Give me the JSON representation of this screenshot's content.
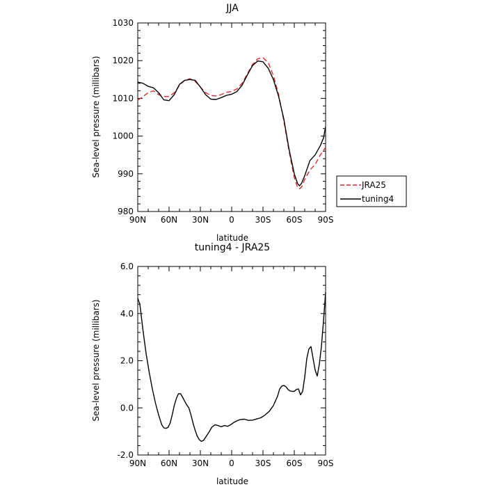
{
  "chart_data": [
    {
      "type": "line",
      "title": "JJA",
      "xlabel": "latitude",
      "ylabel": "Sea-level pressure (millibars)",
      "xlim": [
        90,
        -90
      ],
      "ylim": [
        980,
        1030
      ],
      "x_tick_labels": [
        "90N",
        "60N",
        "30N",
        "0",
        "30S",
        "60S",
        "90S"
      ],
      "y_tick_labels": [
        "980",
        "990",
        "1000",
        "1010",
        "1020",
        "1030"
      ],
      "legend": "right",
      "series": [
        {
          "name": "JRA25",
          "color": "#e8242a",
          "dash": "dashed",
          "x": [
            90,
            85,
            80,
            75,
            70,
            65,
            60,
            55,
            50,
            45,
            40,
            35,
            30,
            25,
            20,
            15,
            10,
            5,
            0,
            -5,
            -10,
            -15,
            -20,
            -25,
            -30,
            -35,
            -40,
            -45,
            -50,
            -55,
            -60,
            -63,
            -65,
            -67,
            -70,
            -75,
            -80,
            -85,
            -90
          ],
          "y": [
            1009.5,
            1010.5,
            1011.5,
            1012.0,
            1011.0,
            1010.5,
            1010.5,
            1011.5,
            1013.5,
            1014.8,
            1015.2,
            1014.5,
            1013.0,
            1011.5,
            1010.8,
            1010.6,
            1011.0,
            1011.6,
            1011.8,
            1012.5,
            1014.0,
            1016.5,
            1019.0,
            1020.5,
            1020.8,
            1019.5,
            1016.0,
            1011.0,
            1004.0,
            996.0,
            989.0,
            986.5,
            986.0,
            986.5,
            988.5,
            991.0,
            992.5,
            995.0,
            997.0
          ]
        },
        {
          "name": "tuning4",
          "color": "#000000",
          "dash": "solid",
          "x": [
            90,
            85,
            80,
            75,
            70,
            65,
            60,
            55,
            50,
            45,
            40,
            35,
            30,
            25,
            20,
            15,
            10,
            5,
            0,
            -5,
            -10,
            -15,
            -20,
            -25,
            -30,
            -35,
            -40,
            -45,
            -50,
            -55,
            -60,
            -63,
            -65,
            -67,
            -70,
            -75,
            -80,
            -85,
            -88,
            -90
          ],
          "y": [
            1014.3,
            1014.0,
            1013.2,
            1012.8,
            1011.5,
            1009.6,
            1009.4,
            1011.0,
            1013.7,
            1014.8,
            1015.0,
            1014.8,
            1013.0,
            1011.0,
            1009.8,
            1009.7,
            1010.2,
            1010.8,
            1011.1,
            1011.8,
            1013.5,
            1016.2,
            1018.7,
            1019.9,
            1019.7,
            1018.0,
            1015.0,
            1010.5,
            1004.5,
            996.5,
            990.0,
            987.5,
            986.8,
            987.5,
            989.5,
            993.5,
            995.0,
            997.5,
            999.5,
            1002.5
          ]
        }
      ]
    },
    {
      "type": "line",
      "title": "tuning4 - JRA25",
      "xlabel": "latitude",
      "ylabel": "Sea-level pressure (millibars)",
      "xlim": [
        90,
        -90
      ],
      "ylim": [
        -2.0,
        6.0
      ],
      "x_tick_labels": [
        "90N",
        "60N",
        "30N",
        "0",
        "30S",
        "60S",
        "90S"
      ],
      "y_tick_labels": [
        "-2.0",
        "0.0",
        "2.0",
        "4.0",
        "6.0"
      ],
      "series": [
        {
          "name": "",
          "color": "#000000",
          "dash": "solid",
          "x": [
            90,
            88,
            85,
            82,
            79,
            76,
            73,
            70,
            67,
            65,
            63,
            61,
            59,
            57,
            55,
            53,
            51,
            49,
            47,
            45,
            43,
            41,
            39,
            37,
            35,
            33,
            31,
            29,
            27,
            25,
            22,
            19,
            16,
            13,
            10,
            7,
            4,
            1,
            -2,
            -5,
            -8,
            -12,
            -16,
            -20,
            -24,
            -28,
            -32,
            -36,
            -40,
            -44,
            -46,
            -48,
            -50,
            -52,
            -54,
            -56,
            -58,
            -60,
            -62,
            -64,
            -66,
            -68,
            -70,
            -72,
            -74,
            -76,
            -78,
            -80,
            -82,
            -84,
            -86,
            -88,
            -90
          ],
          "y": [
            4.65,
            4.4,
            3.3,
            2.3,
            1.5,
            0.8,
            0.2,
            -0.3,
            -0.72,
            -0.85,
            -0.87,
            -0.83,
            -0.65,
            -0.3,
            0.1,
            0.4,
            0.6,
            0.6,
            0.45,
            0.28,
            0.12,
            0.0,
            -0.3,
            -0.65,
            -0.95,
            -1.2,
            -1.35,
            -1.42,
            -1.38,
            -1.25,
            -1.05,
            -0.82,
            -0.72,
            -0.75,
            -0.8,
            -0.75,
            -0.78,
            -0.72,
            -0.62,
            -0.55,
            -0.5,
            -0.48,
            -0.53,
            -0.52,
            -0.47,
            -0.42,
            -0.3,
            -0.15,
            0.1,
            0.5,
            0.8,
            0.92,
            0.95,
            0.9,
            0.78,
            0.72,
            0.7,
            0.7,
            0.78,
            0.8,
            0.55,
            0.7,
            1.3,
            2.1,
            2.5,
            2.6,
            2.1,
            1.6,
            1.35,
            1.85,
            2.6,
            3.7,
            4.9
          ]
        }
      ]
    }
  ]
}
